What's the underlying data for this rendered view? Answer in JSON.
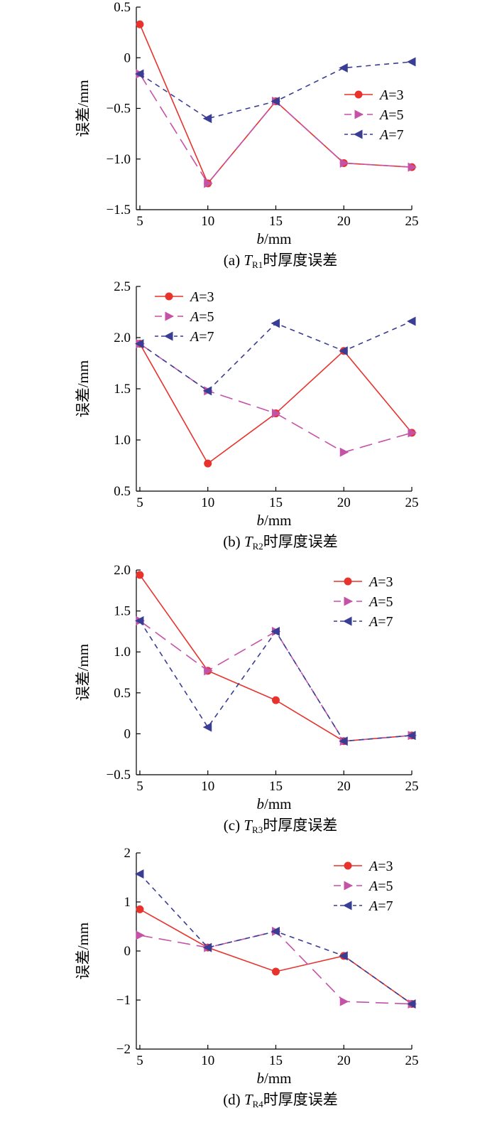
{
  "chart_data": [
    {
      "type": "line",
      "caption": {
        "prefix": "(a)",
        "var": "T",
        "sub": "R1",
        "suffix": "时厚度误差"
      },
      "xlabel": {
        "italic": "b",
        "rest": "/mm"
      },
      "ylabel": "误差/mm",
      "x": [
        5,
        10,
        15,
        20,
        25
      ],
      "ylim": [
        -1.5,
        0.5
      ],
      "yticks": [
        -1.5,
        -1.0,
        -0.5,
        0,
        0.5
      ],
      "ytick_labels": [
        "−1.5",
        "−1.0",
        "−0.5",
        "0",
        "0.5"
      ],
      "xticks": [
        5,
        10,
        15,
        20,
        25
      ],
      "xtick_labels": [
        "5",
        "10",
        "15",
        "20",
        "25"
      ],
      "legend_loc": "right-middle",
      "series": [
        {
          "name": "A=3",
          "values": [
            0.33,
            -1.24,
            -0.43,
            -1.04,
            -1.08
          ]
        },
        {
          "name": "A=5",
          "values": [
            -0.16,
            -1.24,
            -0.43,
            -1.04,
            -1.08
          ]
        },
        {
          "name": "A=7",
          "values": [
            -0.16,
            -0.6,
            -0.43,
            -0.1,
            -0.04
          ]
        }
      ]
    },
    {
      "type": "line",
      "caption": {
        "prefix": "(b)",
        "var": "T",
        "sub": "R2",
        "suffix": "时厚度误差"
      },
      "xlabel": {
        "italic": "b",
        "rest": "/mm"
      },
      "ylabel": "误差/mm",
      "x": [
        5,
        10,
        15,
        20,
        25
      ],
      "ylim": [
        0.5,
        2.5
      ],
      "yticks": [
        0.5,
        1.0,
        1.5,
        2.0,
        2.5
      ],
      "ytick_labels": [
        "0.5",
        "1.0",
        "1.5",
        "2.0",
        "2.5"
      ],
      "xticks": [
        5,
        10,
        15,
        20,
        25
      ],
      "xtick_labels": [
        "5",
        "10",
        "15",
        "20",
        "25"
      ],
      "legend_loc": "top-left",
      "series": [
        {
          "name": "A=3",
          "values": [
            1.94,
            0.77,
            1.26,
            1.87,
            1.07
          ]
        },
        {
          "name": "A=5",
          "values": [
            1.94,
            1.48,
            1.26,
            0.88,
            1.07
          ]
        },
        {
          "name": "A=7",
          "values": [
            1.94,
            1.48,
            2.14,
            1.87,
            2.16
          ]
        }
      ]
    },
    {
      "type": "line",
      "caption": {
        "prefix": "(c)",
        "var": "T",
        "sub": "R3",
        "suffix": "时厚度误差"
      },
      "xlabel": {
        "italic": "b",
        "rest": "/mm"
      },
      "ylabel": "误差/mm",
      "x": [
        5,
        10,
        15,
        20,
        25
      ],
      "ylim": [
        -0.5,
        2.0
      ],
      "yticks": [
        -0.5,
        0,
        0.5,
        1.0,
        1.5,
        2.0
      ],
      "ytick_labels": [
        "−0.5",
        "0",
        "0.5",
        "1.0",
        "1.5",
        "2.0"
      ],
      "xticks": [
        5,
        10,
        15,
        20,
        25
      ],
      "xtick_labels": [
        "5",
        "10",
        "15",
        "20",
        "25"
      ],
      "legend_loc": "top-right",
      "series": [
        {
          "name": "A=3",
          "values": [
            1.94,
            0.77,
            0.41,
            -0.09,
            -0.02
          ]
        },
        {
          "name": "A=5",
          "values": [
            1.38,
            0.77,
            1.25,
            -0.09,
            -0.02
          ]
        },
        {
          "name": "A=7",
          "values": [
            1.38,
            0.08,
            1.25,
            -0.09,
            -0.02
          ]
        }
      ]
    },
    {
      "type": "line",
      "caption": {
        "prefix": "(d)",
        "var": "T",
        "sub": "R4",
        "suffix": "时厚度误差"
      },
      "xlabel": {
        "italic": "b",
        "rest": "/mm"
      },
      "ylabel": "误差/mm",
      "x": [
        5,
        10,
        15,
        20,
        25
      ],
      "ylim": [
        -2,
        2
      ],
      "yticks": [
        -2,
        -1,
        0,
        1,
        2
      ],
      "ytick_labels": [
        "−2",
        "−1",
        "0",
        "1",
        "2"
      ],
      "xticks": [
        5,
        10,
        15,
        20,
        25
      ],
      "xtick_labels": [
        "5",
        "10",
        "15",
        "20",
        "25"
      ],
      "legend_loc": "top-right",
      "series": [
        {
          "name": "A=3",
          "values": [
            0.85,
            0.07,
            -0.42,
            -0.1,
            -1.08
          ]
        },
        {
          "name": "A=5",
          "values": [
            0.32,
            0.07,
            0.4,
            -1.03,
            -1.08
          ]
        },
        {
          "name": "A=7",
          "values": [
            1.57,
            0.07,
            0.4,
            -0.1,
            -1.08
          ]
        }
      ]
    }
  ],
  "styles": {
    "A=3": {
      "color": "#e8322c",
      "dash": "none",
      "marker": "circle"
    },
    "A=5": {
      "color": "#c652a8",
      "dash": "18 9",
      "marker": "triangle-right"
    },
    "A=7": {
      "color": "#3a3d94",
      "dash": "7 6",
      "marker": "triangle-left"
    }
  }
}
